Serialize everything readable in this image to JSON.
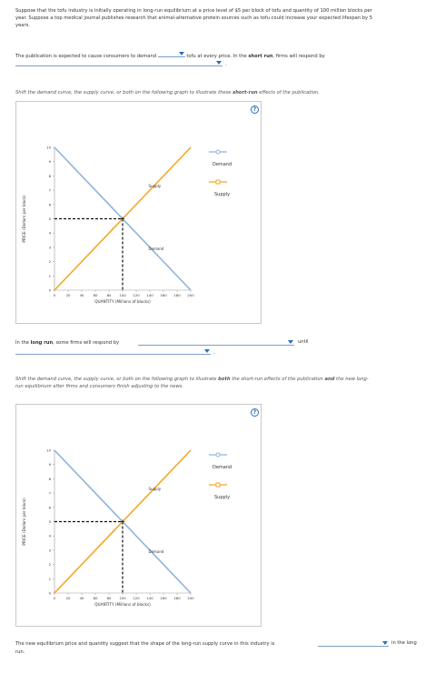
{
  "intro": {
    "line1": "Suppose that the tofu industry is initially operating in long-run equilibrium at a price level of $5 per block of tofu and quantity of 100 million blocks per",
    "line2": "year. Suppose a top medical journal publishes research that animal-alternative protein sources such as tofu could increase your expected lifespan by 5",
    "line3": "years."
  },
  "q1": {
    "prefix": "The publication is expected to cause consumers to demand",
    "middle": "tofu at every price. In the",
    "bold": "short run",
    "suffix": ", firms will respond by",
    "dropdown1_value": "",
    "dropdown2_value": ""
  },
  "instruction1": {
    "text": "Shift the demand curve, the supply curve, or both on the following graph to illustrate these",
    "bold": "short-run",
    "suffix": "effects of the publication."
  },
  "q2": {
    "prefix": "In the",
    "bold": "long run",
    "middle": ", some firms will respond by",
    "suffix": "until",
    "dropdown1_value": "",
    "dropdown2_value": ""
  },
  "instruction2": {
    "part1": "Shift the demand curve, the supply curve, or both on the following graph to illustrate",
    "bold1": "both",
    "part2": "the short-run effects of the publication",
    "bold2": "and",
    "part3": "the new long-",
    "line2": "run equilibrium after firms and consumers finish adjusting to the news."
  },
  "q3": {
    "prefix": "The new equilibrium price and quantity suggest that the shape of the long-run supply curve in this industry is",
    "suffix": "in the long",
    "line2": "run.",
    "dropdown_value": ""
  },
  "help_label": "?",
  "legend": {
    "demand_label": "Demand",
    "supply_label": "Supply"
  },
  "colors": {
    "demand": "#8fb3d9",
    "supply": "#f5a623",
    "accent": "#2a6fb8"
  },
  "chart_data": [
    {
      "type": "line",
      "xlabel": "QUANTITY (Millions of blocks)",
      "ylabel": "PRICE (Dollars per block)",
      "xlim": [
        0,
        200
      ],
      "ylim": [
        0,
        10
      ],
      "x_ticks": [
        0,
        20,
        40,
        60,
        80,
        100,
        120,
        140,
        160,
        180,
        200
      ],
      "y_ticks": [
        0,
        1,
        2,
        3,
        4,
        5,
        6,
        7,
        8,
        9,
        10
      ],
      "series": [
        {
          "name": "Supply",
          "x": [
            0,
            200
          ],
          "y": [
            0,
            10
          ],
          "color": "#f5a623"
        },
        {
          "name": "Demand",
          "x": [
            0,
            200
          ],
          "y": [
            10,
            0
          ],
          "color": "#8fb3d9"
        }
      ],
      "equilibrium": {
        "x": 100,
        "y": 5
      }
    },
    {
      "type": "line",
      "xlabel": "QUANTITY (Millions of blocks)",
      "ylabel": "PRICE (Dollars per block)",
      "xlim": [
        0,
        200
      ],
      "ylim": [
        0,
        10
      ],
      "x_ticks": [
        0,
        20,
        40,
        60,
        80,
        100,
        120,
        140,
        160,
        180,
        200
      ],
      "y_ticks": [
        0,
        1,
        2,
        3,
        4,
        5,
        6,
        7,
        8,
        9,
        10
      ],
      "series": [
        {
          "name": "Supply",
          "x": [
            0,
            200
          ],
          "y": [
            0,
            10
          ],
          "color": "#f5a623"
        },
        {
          "name": "Demand",
          "x": [
            0,
            200
          ],
          "y": [
            10,
            0
          ],
          "color": "#8fb3d9"
        }
      ],
      "equilibrium": {
        "x": 100,
        "y": 5
      }
    }
  ]
}
